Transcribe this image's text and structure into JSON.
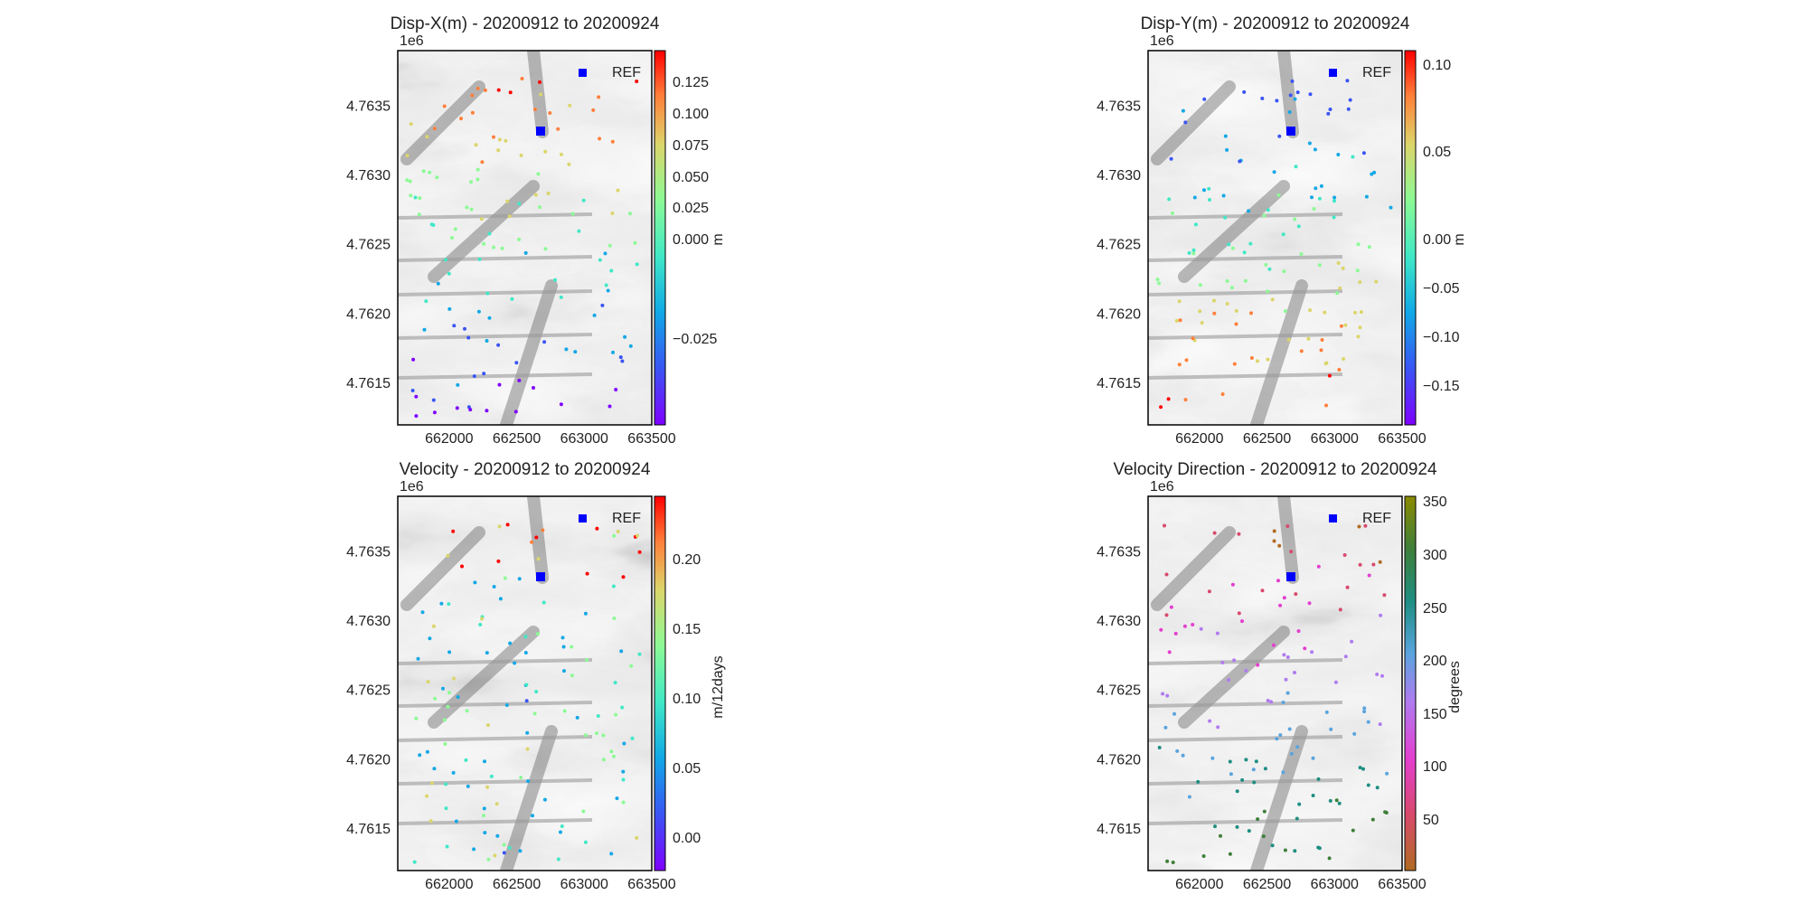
{
  "chart_data": [
    {
      "type": "scatter",
      "title": "Disp-X(m) - 20200912 to 20200924",
      "x_ticks": [
        "662000",
        "662500",
        "663000",
        "663500"
      ],
      "y_ticks": [
        "4.7615",
        "4.7620",
        "4.7625",
        "4.7630",
        "4.7635"
      ],
      "y_offset": "1e6",
      "xlim": [
        661620,
        663500
      ],
      "ylim": [
        4761200,
        4763900
      ],
      "reference_label": "REF",
      "colorbar": {
        "label": "m",
        "colormap": "rainbow",
        "ticks": [
          "0.125",
          "0.100",
          "0.075",
          "0.050",
          "0.025",
          "0.000",
          "−0.025"
        ]
      }
    },
    {
      "type": "scatter",
      "title": "Disp-Y(m) - 20200912 to 20200924",
      "x_ticks": [
        "662000",
        "662500",
        "663000",
        "663500"
      ],
      "y_ticks": [
        "4.7615",
        "4.7620",
        "4.7625",
        "4.7630",
        "4.7635"
      ],
      "y_offset": "1e6",
      "xlim": [
        661620,
        663500
      ],
      "ylim": [
        4761200,
        4763900
      ],
      "reference_label": "REF",
      "colorbar": {
        "label": "m",
        "colormap": "rainbow",
        "ticks": [
          "0.10",
          "0.05",
          "0.00",
          "−0.05",
          "−0.10",
          "−0.15"
        ]
      }
    },
    {
      "type": "scatter",
      "title": "Velocity - 20200912 to 20200924",
      "x_ticks": [
        "662000",
        "662500",
        "663000",
        "663500"
      ],
      "y_ticks": [
        "4.7615",
        "4.7620",
        "4.7625",
        "4.7630",
        "4.7635"
      ],
      "y_offset": "1e6",
      "xlim": [
        661620,
        663500
      ],
      "ylim": [
        4761200,
        4763900
      ],
      "reference_label": "REF",
      "colorbar": {
        "label": "m/12days",
        "colormap": "rainbow",
        "ticks": [
          "0.20",
          "0.15",
          "0.10",
          "0.05",
          "0.00"
        ]
      }
    },
    {
      "type": "scatter",
      "title": "Velocity Direction - 20200912 to 20200924",
      "x_ticks": [
        "662000",
        "662500",
        "663000",
        "663500"
      ],
      "y_ticks": [
        "4.7615",
        "4.7620",
        "4.7625",
        "4.7630",
        "4.7635"
      ],
      "y_offset": "1e6",
      "xlim": [
        661620,
        663500
      ],
      "ylim": [
        4761200,
        4763900
      ],
      "reference_label": "REF",
      "colorbar": {
        "label": "degrees",
        "colormap": "brown-magenta-violet-teal-olive",
        "ticks": [
          "350",
          "300",
          "250",
          "200",
          "150",
          "100",
          "50"
        ]
      }
    }
  ],
  "colors": {
    "reference_marker": "#0000ff",
    "axis": "#000000",
    "hillshade_light": "#f4f4f4",
    "hillshade_dark": "#262626"
  }
}
